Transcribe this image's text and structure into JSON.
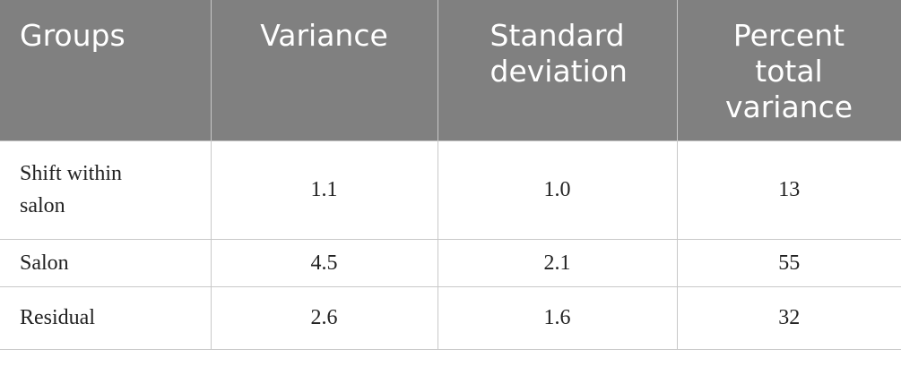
{
  "table": {
    "header": [
      "Groups",
      "Variance",
      "Standard deviation",
      "Percent total variance"
    ],
    "rows": [
      [
        "Shift within salon",
        "1.1",
        "1.0",
        "13"
      ],
      [
        "Salon",
        "4.5",
        "2.1",
        "55"
      ],
      [
        "Residual",
        "2.6",
        "1.6",
        "32"
      ]
    ]
  }
}
